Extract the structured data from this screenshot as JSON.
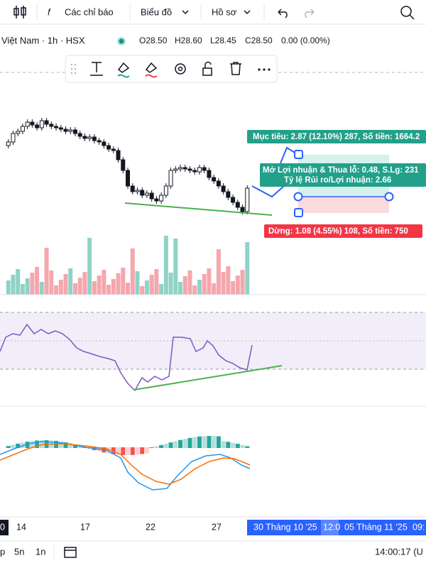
{
  "toolbar": {
    "indicators": "Các chỉ báo",
    "chart": "Biểu đồ",
    "profile": "Hồ sơ"
  },
  "symbol": {
    "name": "Việt Nam · 1h · HSX",
    "open": "O28.50",
    "high": "H28.60",
    "low": "L28.45",
    "close": "C28.50",
    "change": "0.00 (0.00%)"
  },
  "position": {
    "target": "Mục tiêu: 2.87 (12.10%) 287, Số tiền: 1664.2",
    "pnl": "Mở Lợi nhuận & Thua lỗ: 0.48, S.Lg: 231",
    "ratio": "Tỷ lệ Rủi ro/Lợi nhuận: 2.66",
    "stop": "Dừng: 1.08 (4.55%) 108, Số tiền: 750"
  },
  "time_axis": {
    "labels": [
      "0",
      "14",
      "17",
      "22",
      "27"
    ],
    "highlight": [
      "30 Tháng 10 '25",
      "12:0",
      "05 Tháng 11 '25",
      "09:"
    ]
  },
  "bottom_bar": {
    "ranges": [
      "p",
      "5n",
      "1n"
    ],
    "clock": "14:00:17 (U"
  }
}
